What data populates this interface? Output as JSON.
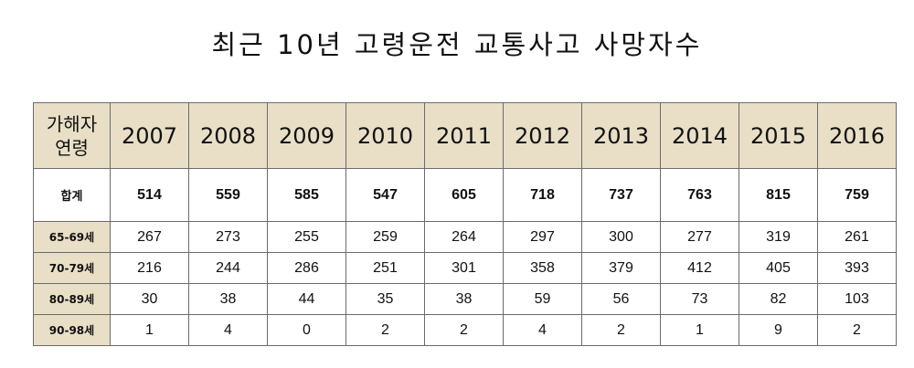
{
  "title": "최근 10년 고령운전 교통사고 사망자수",
  "chart_data": {
    "type": "table",
    "title": "최근 10년 고령운전 교통사고 사망자수",
    "corner_label": [
      "가해자",
      "연령"
    ],
    "columns": [
      "2007",
      "2008",
      "2009",
      "2010",
      "2011",
      "2012",
      "2013",
      "2014",
      "2015",
      "2016"
    ],
    "rows": [
      {
        "label": "합계",
        "values": [
          514,
          559,
          585,
          547,
          605,
          718,
          737,
          763,
          815,
          759
        ]
      },
      {
        "label": "65-69세",
        "values": [
          267,
          273,
          255,
          259,
          264,
          297,
          300,
          277,
          319,
          261
        ]
      },
      {
        "label": "70-79세",
        "values": [
          216,
          244,
          286,
          251,
          301,
          358,
          379,
          412,
          405,
          393
        ]
      },
      {
        "label": "80-89세",
        "values": [
          30,
          38,
          44,
          35,
          38,
          59,
          56,
          73,
          82,
          103
        ]
      },
      {
        "label": "90-98세",
        "values": [
          1,
          4,
          0,
          2,
          2,
          4,
          2,
          1,
          9,
          2
        ]
      }
    ]
  }
}
